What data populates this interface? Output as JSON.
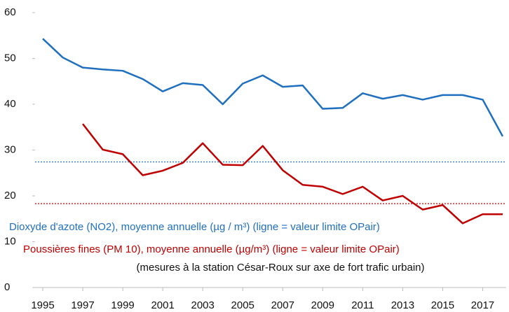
{
  "chart_data": {
    "type": "line",
    "x": [
      1995,
      1996,
      1997,
      1998,
      1999,
      2000,
      2001,
      2002,
      2003,
      2004,
      2005,
      2006,
      2007,
      2008,
      2009,
      2010,
      2011,
      2012,
      2013,
      2014,
      2015,
      2016,
      2017,
      2018
    ],
    "series": [
      {
        "name": "Dioxyde d'azote (NO2), moyenne annuelle (µg / m³) (ligne = valeur limite OPair)",
        "color": "#1f6fc0",
        "limit": 27.4,
        "values": [
          54.3,
          50.2,
          48,
          47.6,
          47.3,
          45.5,
          42.8,
          44.6,
          44.2,
          40,
          44.5,
          46.3,
          43.8,
          44.1,
          39,
          39.2,
          42.4,
          41.2,
          42,
          41,
          42,
          42,
          41,
          33
        ]
      },
      {
        "name": "Poussières fines (PM 10), moyenne annuelle  (µg/m³) (ligne = valeur limite OPair)",
        "color": "#c00000",
        "limit": 18.3,
        "values": [
          null,
          null,
          35.7,
          30.1,
          29.1,
          24.5,
          25.5,
          27.2,
          31.5,
          26.8,
          26.7,
          30.9,
          25.6,
          22.4,
          22,
          20.4,
          22,
          19,
          20,
          17,
          18,
          14,
          16,
          16
        ]
      }
    ],
    "note": "(mesures à la station César-Roux sur axe de fort trafic urbain)",
    "xlim": [
      1995,
      2018
    ],
    "xticks": [
      1995,
      1997,
      1999,
      2001,
      2003,
      2005,
      2007,
      2009,
      2011,
      2013,
      2015,
      2017
    ],
    "ylim": [
      0,
      60
    ],
    "yticks": [
      0,
      10,
      20,
      30,
      40,
      50,
      60
    ]
  }
}
